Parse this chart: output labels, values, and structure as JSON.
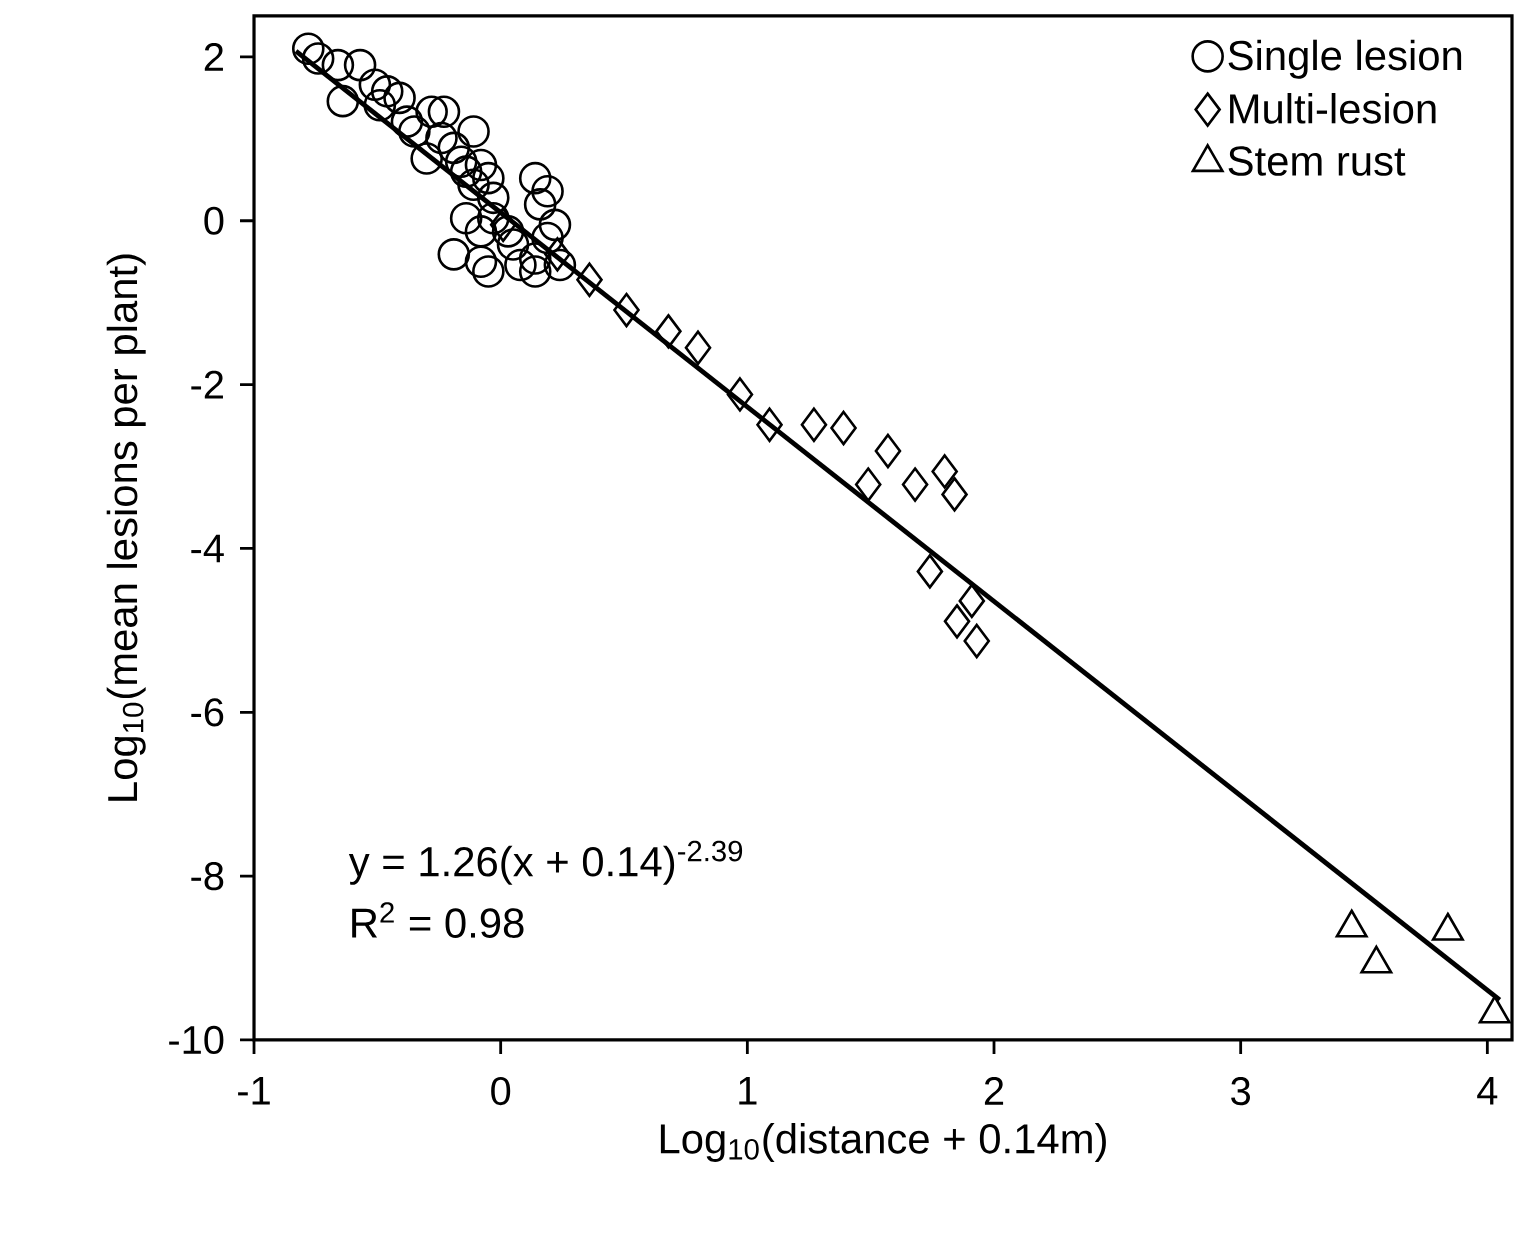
{
  "chart_data": {
    "type": "scatter",
    "xlabel": "Log$_{10}$(distance + 0.14m)",
    "ylabel": "Log$_{10}$(mean lesions per plant)",
    "xlim": [
      -1,
      4.1
    ],
    "ylim": [
      -10,
      2.5
    ],
    "xticks": [
      -1,
      0,
      1,
      2,
      3,
      4
    ],
    "yticks": [
      -10,
      -8,
      -6,
      -4,
      -2,
      0,
      2
    ],
    "grid": false,
    "legend": "top right",
    "annotations": [
      "y = 1.26(x + 0.14)$^{-2.39}$",
      "R$^{2}$ = 0.98"
    ],
    "series": [
      {
        "name": "Single lesion",
        "color": "#000000",
        "marker": "circle",
        "x": [
          -0.78,
          -0.74,
          -0.66,
          -0.57,
          -0.64,
          -0.51,
          -0.46,
          -0.41,
          -0.49,
          -0.38,
          -0.35,
          -0.28,
          -0.23,
          -0.11,
          -0.24,
          -0.19,
          -0.3,
          -0.16,
          -0.14,
          -0.08,
          -0.11,
          -0.05,
          -0.03,
          0.14,
          0.19,
          0.16,
          -0.14,
          -0.08,
          -0.03,
          -0.19,
          -0.08,
          -0.05,
          0.05,
          0.08,
          0.14,
          0.19,
          0.22,
          0.24,
          0.14,
          0.03
        ],
        "values": [
          2.1,
          1.98,
          1.9,
          1.9,
          1.46,
          1.66,
          1.58,
          1.5,
          1.41,
          1.21,
          1.09,
          1.33,
          1.33,
          1.09,
          1.01,
          0.89,
          0.76,
          0.72,
          0.6,
          0.68,
          0.44,
          0.52,
          0.28,
          0.52,
          0.36,
          0.2,
          0.03,
          -0.13,
          0.03,
          -0.41,
          -0.5,
          -0.62,
          -0.29,
          -0.54,
          -0.46,
          -0.21,
          -0.05,
          -0.54,
          -0.62,
          -0.13
        ]
      },
      {
        "name": "Multi-lesion",
        "color": "#000000",
        "marker": "diamond",
        "x": [
          0.01,
          0.23,
          0.36,
          0.51,
          0.68,
          0.8,
          0.97,
          1.09,
          1.27,
          1.39,
          1.57,
          1.49,
          1.68,
          1.8,
          1.84,
          1.74,
          1.91,
          1.85,
          1.93
        ],
        "values": [
          -0.05,
          -0.41,
          -0.72,
          -1.09,
          -1.35,
          -1.55,
          -2.12,
          -2.49,
          -2.49,
          -2.53,
          -2.81,
          -3.22,
          -3.22,
          -3.06,
          -3.34,
          -4.28,
          -4.64,
          -4.89,
          -5.13
        ]
      },
      {
        "name": "Stem rust",
        "color": "#000000",
        "marker": "triangle",
        "x": [
          3.45,
          3.55,
          3.84,
          4.03
        ],
        "values": [
          -8.63,
          -9.07,
          -8.67,
          -9.68
        ]
      },
      {
        "type": "line",
        "color": "#000000",
        "marker": "none",
        "line_style": "solid",
        "x": [
          -0.83,
          4.05
        ],
        "values": [
          2.07,
          -9.51
        ]
      }
    ]
  }
}
